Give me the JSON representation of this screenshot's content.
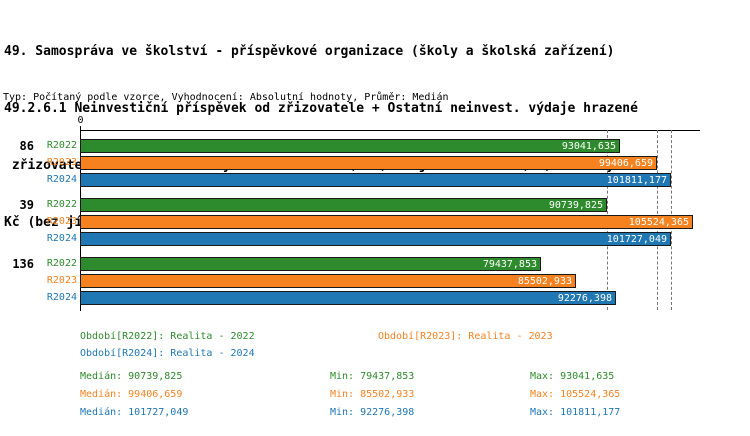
{
  "chart_data": {
    "type": "bar",
    "orientation": "horizontal",
    "title_lines": [
      "49. Samospráva ve školství - příspěvkové organizace (školy a školská zařízení)",
      "49.2.6.1 Neinvestiční příspěvek od zřizovatele + Ostatní neinvest. výdaje hrazené",
      " zřizovatelem + Přímé náklady na vzdělávání (NIV) na jednoho žáka (ZŠ)  v celých",
      "Kč (bez jídelen a stravování)"
    ],
    "subtitle": "Typ: Počítaný podle vzorce, Vyhodnocení: Absolutní hodnoty, Průměr: Medián",
    "x_axis": {
      "origin_label": "0",
      "xlim": [
        0,
        106800
      ]
    },
    "series": [
      {
        "name": "R2022",
        "color": "#2e8b2d",
        "legend": "Období[R2022]: Realita - 2022",
        "stats": {
          "median": 90739.825,
          "min": 79437.853,
          "max": 93041.635,
          "median_label": "Medián: 90739,825",
          "min_label": "Min: 79437,853",
          "max_label": "Max: 93041,635"
        }
      },
      {
        "name": "R2023",
        "color": "#f5821f",
        "legend": "Období[R2023]: Realita - 2023",
        "stats": {
          "median": 99406.659,
          "min": 85502.933,
          "max": 105524.365,
          "median_label": "Medián: 99406,659",
          "min_label": "Min: 85502,933",
          "max_label": "Max: 105524,365"
        }
      },
      {
        "name": "R2024",
        "color": "#1f77b4",
        "legend": "Období[R2024]: Realita - 2024",
        "stats": {
          "median": 101727.049,
          "min": 92276.398,
          "max": 101811.177,
          "median_label": "Medián: 101727,049",
          "min_label": "Min: 92276,398",
          "max_label": "Max: 101811,177"
        }
      }
    ],
    "groups": [
      {
        "label": "86",
        "values": [
          {
            "series": "R2022",
            "value": 93041.635,
            "label": "93041,635"
          },
          {
            "series": "R2023",
            "value": 99406.659,
            "label": "99406,659"
          },
          {
            "series": "R2024",
            "value": 101811.177,
            "label": "101811,177"
          }
        ]
      },
      {
        "label": "39",
        "values": [
          {
            "series": "R2022",
            "value": 90739.825,
            "label": "90739,825"
          },
          {
            "series": "R2023",
            "value": 105524.365,
            "label": "105524,365"
          },
          {
            "series": "R2024",
            "value": 101727.049,
            "label": "101727,049"
          }
        ]
      },
      {
        "label": "136",
        "values": [
          {
            "series": "R2022",
            "value": 79437.853,
            "label": "79437,853"
          },
          {
            "series": "R2023",
            "value": 85502.933,
            "label": "85502,933"
          },
          {
            "series": "R2024",
            "value": 92276.398,
            "label": "92276,398"
          }
        ]
      }
    ],
    "gridlines": [
      90739.825,
      99406.659,
      101727.049
    ]
  }
}
